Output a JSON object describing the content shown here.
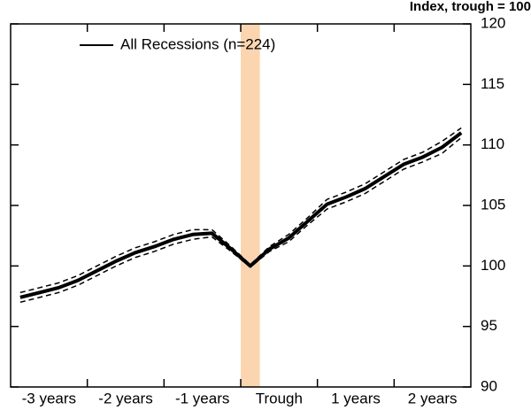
{
  "chart_data": {
    "type": "line",
    "y_axis_title": "Index, trough = 100",
    "categories": [
      "-3 years",
      "-2 years",
      "-1 years",
      "Trough",
      "1 years",
      "2 years"
    ],
    "x": [
      -12,
      -11,
      -10,
      -9,
      -8,
      -7,
      -6,
      -5,
      -4,
      -3,
      -2,
      -1,
      0,
      1,
      2,
      3,
      4,
      5,
      6,
      7,
      8,
      9,
      10,
      11
    ],
    "xlim": [
      -12.5,
      11.5
    ],
    "xticks": [
      -8.5,
      -4.5,
      -0.5,
      3.5,
      7.5
    ],
    "ylim": [
      90,
      120
    ],
    "yticks": [
      90,
      95,
      100,
      105,
      110,
      115,
      120
    ],
    "shade": {
      "from": -0.5,
      "to": 0.5,
      "color": "#fbd5b0"
    },
    "legend": "top-left",
    "series": [
      {
        "name": "All Recessions (n=224)",
        "color": "#000000",
        "width": 4,
        "dashed": false,
        "values": [
          97.4,
          97.8,
          98.2,
          98.8,
          99.6,
          100.4,
          101.1,
          101.6,
          102.2,
          102.6,
          102.7,
          101.4,
          100.0,
          101.4,
          102.3,
          103.7,
          105.1,
          105.7,
          106.4,
          107.4,
          108.4,
          109.0,
          109.8,
          111.0
        ]
      },
      {
        "color": "#000000",
        "width": 1.5,
        "dashed": true,
        "values": [
          97.8,
          98.2,
          98.6,
          99.2,
          100.0,
          100.8,
          101.5,
          102.0,
          102.6,
          103.0,
          103.0,
          101.6,
          100.1,
          101.6,
          102.6,
          104.0,
          105.5,
          106.1,
          106.8,
          107.8,
          108.8,
          109.4,
          110.3,
          111.4
        ]
      },
      {
        "color": "#000000",
        "width": 1.5,
        "dashed": true,
        "values": [
          97.0,
          97.4,
          97.8,
          98.4,
          99.2,
          100.0,
          100.7,
          101.2,
          101.8,
          102.2,
          102.4,
          101.2,
          99.9,
          101.2,
          102.0,
          103.4,
          104.7,
          105.3,
          106.0,
          107.0,
          108.0,
          108.6,
          109.3,
          110.6
        ]
      }
    ]
  }
}
